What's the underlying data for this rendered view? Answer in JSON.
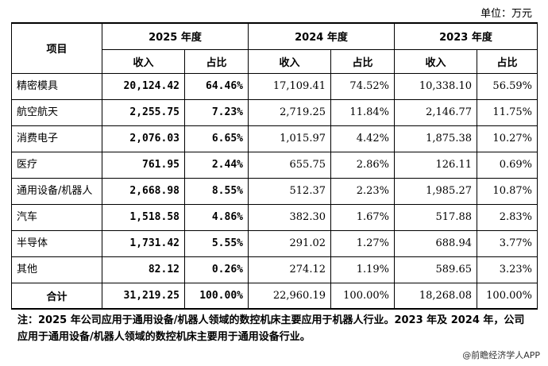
{
  "unit_label": "单位：万元",
  "headers": {
    "item": "项目",
    "years": [
      "2025 年度",
      "2024 年度",
      "2023 年度"
    ],
    "income": "收入",
    "share": "占比"
  },
  "rows": [
    {
      "name": "精密模具",
      "v2025": "20,124.42",
      "p2025": "64.46%",
      "v2024": "17,109.41",
      "p2024": "74.52%",
      "v2023": "10,338.10",
      "p2023": "56.59%"
    },
    {
      "name": "航空航天",
      "v2025": "2,255.75",
      "p2025": "7.23%",
      "v2024": "2,719.25",
      "p2024": "11.84%",
      "v2023": "2,146.77",
      "p2023": "11.75%"
    },
    {
      "name": "消费电子",
      "v2025": "2,076.03",
      "p2025": "6.65%",
      "v2024": "1,015.97",
      "p2024": "4.42%",
      "v2023": "1,875.38",
      "p2023": "10.27%"
    },
    {
      "name": "医疗",
      "v2025": "761.95",
      "p2025": "2.44%",
      "v2024": "655.75",
      "p2024": "2.86%",
      "v2023": "126.11",
      "p2023": "0.69%"
    },
    {
      "name": "通用设备/机器人",
      "v2025": "2,668.98",
      "p2025": "8.55%",
      "v2024": "512.37",
      "p2024": "2.23%",
      "v2023": "1,985.27",
      "p2023": "10.87%"
    },
    {
      "name": "汽车",
      "v2025": "1,518.58",
      "p2025": "4.86%",
      "v2024": "382.30",
      "p2024": "1.67%",
      "v2023": "517.88",
      "p2023": "2.83%"
    },
    {
      "name": "半导体",
      "v2025": "1,731.42",
      "p2025": "5.55%",
      "v2024": "291.02",
      "p2024": "1.27%",
      "v2023": "688.94",
      "p2023": "3.77%"
    },
    {
      "name": "其他",
      "v2025": "82.12",
      "p2025": "0.26%",
      "v2024": "274.12",
      "p2024": "1.19%",
      "v2023": "589.65",
      "p2023": "3.23%"
    }
  ],
  "total": {
    "name": "合计",
    "v2025": "31,219.25",
    "p2025": "100.00%",
    "v2024": "22,960.19",
    "p2024": "100.00%",
    "v2023": "18,268.08",
    "p2023": "100.00%"
  },
  "note": "注：2025 年公司应用于通用设备/机器人领域的数控机床主要应用于机器人行业。2023 年及 2024 年，公司应用于通用设备/机器人领域的数控机床主要用于通用设备行业。",
  "source": "@前瞻经济学人APP"
}
